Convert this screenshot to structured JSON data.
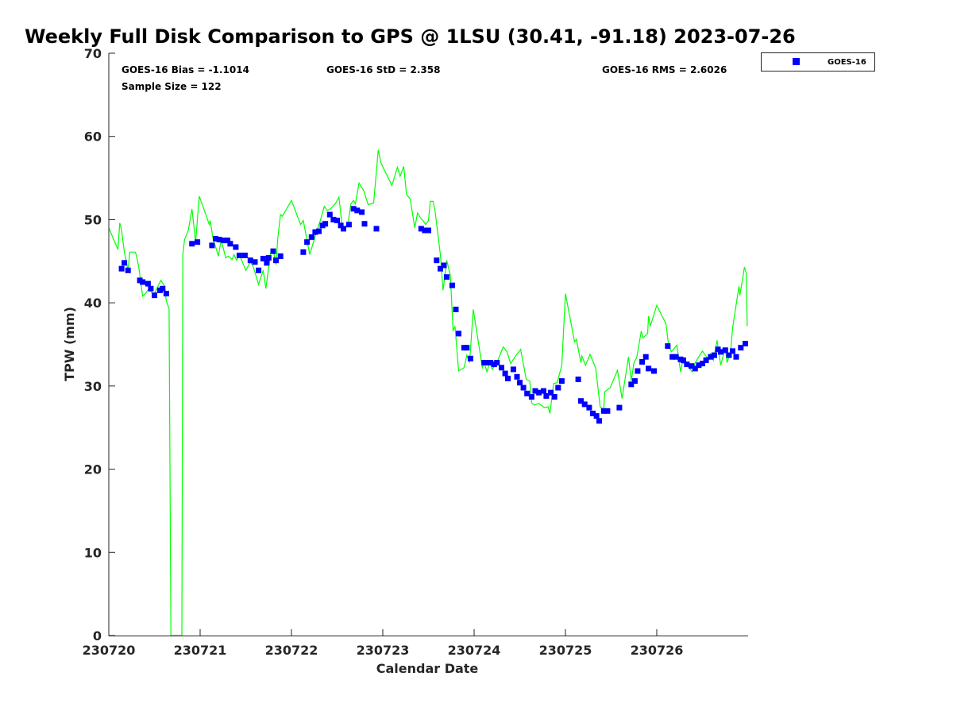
{
  "chart_data": {
    "type": "scatter",
    "title": "Weekly Full Disk Comparison to GPS @ 1LSU (30.41, -91.18) 2023-07-26",
    "xlabel": "Calendar Date",
    "ylabel": "TPW (mm)",
    "xlim": [
      0,
      7
    ],
    "ylim": [
      0,
      70
    ],
    "x_unit_note": "days since 230720",
    "xticks": [
      0,
      1,
      2,
      3,
      4,
      5,
      6
    ],
    "xtick_labels": [
      "230720",
      "230721",
      "230722",
      "230723",
      "230724",
      "230725",
      "230726"
    ],
    "yticks": [
      0,
      10,
      20,
      30,
      40,
      50,
      60,
      70
    ],
    "ytick_labels": [
      "0",
      "10",
      "20",
      "30",
      "40",
      "50",
      "60",
      "70"
    ],
    "grid": false,
    "legend": {
      "placement": "outside-top-right",
      "entries": [
        "GOES-16"
      ]
    },
    "stats": {
      "bias": "GOES-16 Bias = -1.1014",
      "std": "GOES-16 StD = 2.358",
      "rms": "GOES-16 RMS = 2.6026",
      "sample": "Sample Size = 122"
    },
    "colors": {
      "goes": "#0000ff",
      "gps": "#00ff00"
    },
    "series": [
      {
        "name": "GOES-16",
        "kind": "scatter",
        "points": [
          [
            0.14,
            44.1
          ],
          [
            0.17,
            44.8
          ],
          [
            0.21,
            43.9
          ],
          [
            0.34,
            42.7
          ],
          [
            0.37,
            42.5
          ],
          [
            0.43,
            42.3
          ],
          [
            0.46,
            41.7
          ],
          [
            0.5,
            40.9
          ],
          [
            0.56,
            41.5
          ],
          [
            0.59,
            41.7
          ],
          [
            0.63,
            41.1
          ],
          [
            0.91,
            47.1
          ],
          [
            0.97,
            47.3
          ],
          [
            1.13,
            46.9
          ],
          [
            1.17,
            47.7
          ],
          [
            1.21,
            47.6
          ],
          [
            1.26,
            47.5
          ],
          [
            1.3,
            47.5
          ],
          [
            1.33,
            47.1
          ],
          [
            1.39,
            46.7
          ],
          [
            1.43,
            45.7
          ],
          [
            1.49,
            45.7
          ],
          [
            1.55,
            45.1
          ],
          [
            1.6,
            44.9
          ],
          [
            1.64,
            43.9
          ],
          [
            1.69,
            45.3
          ],
          [
            1.73,
            44.8
          ],
          [
            1.75,
            45.4
          ],
          [
            1.8,
            46.2
          ],
          [
            1.83,
            45.1
          ],
          [
            1.88,
            45.6
          ],
          [
            2.13,
            46.1
          ],
          [
            2.17,
            47.3
          ],
          [
            2.22,
            47.9
          ],
          [
            2.26,
            48.5
          ],
          [
            2.3,
            48.6
          ],
          [
            2.34,
            49.3
          ],
          [
            2.37,
            49.5
          ],
          [
            2.42,
            50.6
          ],
          [
            2.46,
            50.0
          ],
          [
            2.5,
            49.9
          ],
          [
            2.54,
            49.3
          ],
          [
            2.57,
            48.9
          ],
          [
            2.63,
            49.4
          ],
          [
            2.68,
            51.3
          ],
          [
            2.72,
            51.1
          ],
          [
            2.77,
            50.9
          ],
          [
            2.8,
            49.5
          ],
          [
            2.93,
            48.9
          ],
          [
            3.42,
            48.9
          ],
          [
            3.46,
            48.7
          ],
          [
            3.5,
            48.7
          ],
          [
            3.59,
            45.1
          ],
          [
            3.63,
            44.1
          ],
          [
            3.67,
            44.5
          ],
          [
            3.7,
            43.1
          ],
          [
            3.76,
            42.1
          ],
          [
            3.8,
            39.2
          ],
          [
            3.83,
            36.3
          ],
          [
            3.89,
            34.6
          ],
          [
            3.92,
            34.6
          ],
          [
            3.96,
            33.3
          ],
          [
            4.11,
            32.8
          ],
          [
            4.15,
            32.8
          ],
          [
            4.18,
            32.8
          ],
          [
            4.22,
            32.6
          ],
          [
            4.25,
            32.8
          ],
          [
            4.3,
            32.2
          ],
          [
            4.34,
            31.5
          ],
          [
            4.37,
            30.9
          ],
          [
            4.43,
            32.0
          ],
          [
            4.47,
            31.1
          ],
          [
            4.5,
            30.4
          ],
          [
            4.54,
            29.8
          ],
          [
            4.58,
            29.1
          ],
          [
            4.63,
            28.7
          ],
          [
            4.67,
            29.4
          ],
          [
            4.71,
            29.2
          ],
          [
            4.76,
            29.4
          ],
          [
            4.79,
            28.8
          ],
          [
            4.84,
            29.2
          ],
          [
            4.88,
            28.7
          ],
          [
            4.92,
            29.8
          ],
          [
            4.96,
            30.6
          ],
          [
            5.14,
            30.8
          ],
          [
            5.17,
            28.2
          ],
          [
            5.21,
            27.8
          ],
          [
            5.26,
            27.4
          ],
          [
            5.3,
            26.7
          ],
          [
            5.34,
            26.4
          ],
          [
            5.37,
            25.8
          ],
          [
            5.42,
            27.0
          ],
          [
            5.46,
            27.0
          ],
          [
            5.59,
            27.4
          ],
          [
            5.72,
            30.2
          ],
          [
            5.76,
            30.6
          ],
          [
            5.79,
            31.8
          ],
          [
            5.84,
            32.9
          ],
          [
            5.88,
            33.5
          ],
          [
            5.91,
            32.1
          ],
          [
            5.97,
            31.8
          ],
          [
            6.12,
            34.8
          ],
          [
            6.17,
            33.5
          ],
          [
            6.21,
            33.5
          ],
          [
            6.26,
            33.2
          ],
          [
            6.29,
            33.1
          ],
          [
            6.33,
            32.6
          ],
          [
            6.38,
            32.4
          ],
          [
            6.42,
            32.1
          ],
          [
            6.46,
            32.5
          ],
          [
            6.5,
            32.7
          ],
          [
            6.54,
            33.1
          ],
          [
            6.59,
            33.5
          ],
          [
            6.63,
            33.7
          ],
          [
            6.67,
            34.4
          ],
          [
            6.7,
            34.1
          ],
          [
            6.75,
            34.3
          ],
          [
            6.79,
            33.7
          ],
          [
            6.83,
            34.2
          ],
          [
            6.87,
            33.5
          ],
          [
            6.92,
            34.6
          ],
          [
            6.97,
            35.1
          ]
        ]
      },
      {
        "name": "GPS",
        "kind": "line",
        "points": [
          [
            0.0,
            49.0
          ],
          [
            0.1,
            46.4
          ],
          [
            0.12,
            49.6
          ],
          [
            0.14,
            48.7
          ],
          [
            0.17,
            46.1
          ],
          [
            0.21,
            43.9
          ],
          [
            0.23,
            46.1
          ],
          [
            0.29,
            46.1
          ],
          [
            0.3,
            45.8
          ],
          [
            0.33,
            44.2
          ],
          [
            0.37,
            40.8
          ],
          [
            0.4,
            41.1
          ],
          [
            0.44,
            41.7
          ],
          [
            0.49,
            40.9
          ],
          [
            0.57,
            42.7
          ],
          [
            0.61,
            42.0
          ],
          [
            0.63,
            40.2
          ],
          [
            0.66,
            39.3
          ],
          [
            0.68,
            0
          ],
          [
            0.8,
            0
          ],
          [
            0.81,
            45.8
          ],
          [
            0.83,
            47.6
          ],
          [
            0.87,
            48.7
          ],
          [
            0.91,
            51.3
          ],
          [
            0.95,
            47.3
          ],
          [
            0.99,
            52.8
          ],
          [
            1.04,
            51.3
          ],
          [
            1.1,
            49.4
          ],
          [
            1.11,
            49.9
          ],
          [
            1.14,
            47.8
          ],
          [
            1.2,
            45.6
          ],
          [
            1.23,
            47.6
          ],
          [
            1.28,
            45.4
          ],
          [
            1.31,
            45.6
          ],
          [
            1.35,
            45.2
          ],
          [
            1.37,
            45.8
          ],
          [
            1.4,
            45.1
          ],
          [
            1.43,
            45.8
          ],
          [
            1.5,
            43.9
          ],
          [
            1.55,
            44.9
          ],
          [
            1.58,
            44.4
          ],
          [
            1.64,
            42.2
          ],
          [
            1.69,
            43.9
          ],
          [
            1.72,
            41.7
          ],
          [
            1.77,
            45.9
          ],
          [
            1.8,
            46.4
          ],
          [
            1.83,
            44.6
          ],
          [
            1.85,
            47.8
          ],
          [
            1.88,
            50.6
          ],
          [
            1.9,
            50.4
          ],
          [
            2.0,
            52.3
          ],
          [
            2.1,
            49.4
          ],
          [
            2.13,
            49.9
          ],
          [
            2.17,
            47.5
          ],
          [
            2.2,
            45.8
          ],
          [
            2.26,
            48.0
          ],
          [
            2.31,
            49.7
          ],
          [
            2.36,
            51.6
          ],
          [
            2.39,
            51.1
          ],
          [
            2.43,
            51.3
          ],
          [
            2.48,
            51.9
          ],
          [
            2.52,
            52.7
          ],
          [
            2.55,
            49.7
          ],
          [
            2.57,
            48.9
          ],
          [
            2.62,
            49.5
          ],
          [
            2.65,
            51.9
          ],
          [
            2.68,
            52.3
          ],
          [
            2.7,
            51.9
          ],
          [
            2.74,
            54.4
          ],
          [
            2.79,
            53.5
          ],
          [
            2.84,
            51.8
          ],
          [
            2.9,
            52.0
          ],
          [
            2.95,
            58.4
          ],
          [
            2.98,
            56.8
          ],
          [
            3.1,
            54.1
          ],
          [
            3.16,
            56.3
          ],
          [
            3.19,
            55.2
          ],
          [
            3.23,
            56.4
          ],
          [
            3.26,
            53.0
          ],
          [
            3.3,
            52.5
          ],
          [
            3.35,
            49.0
          ],
          [
            3.38,
            50.8
          ],
          [
            3.42,
            50.1
          ],
          [
            3.44,
            49.9
          ],
          [
            3.47,
            49.4
          ],
          [
            3.5,
            49.9
          ],
          [
            3.52,
            52.2
          ],
          [
            3.55,
            52.2
          ],
          [
            3.57,
            51.3
          ],
          [
            3.63,
            45.8
          ],
          [
            3.66,
            41.5
          ],
          [
            3.7,
            45.1
          ],
          [
            3.74,
            43.3
          ],
          [
            3.77,
            36.6
          ],
          [
            3.79,
            37.2
          ],
          [
            3.83,
            31.8
          ],
          [
            3.89,
            32.2
          ],
          [
            3.92,
            33.7
          ],
          [
            3.95,
            32.8
          ],
          [
            3.99,
            39.2
          ],
          [
            4.09,
            32.2
          ],
          [
            4.11,
            32.8
          ],
          [
            4.14,
            31.7
          ],
          [
            4.17,
            32.8
          ],
          [
            4.2,
            32.0
          ],
          [
            4.26,
            33.1
          ],
          [
            4.32,
            34.7
          ],
          [
            4.36,
            34.1
          ],
          [
            4.4,
            32.7
          ],
          [
            4.46,
            33.7
          ],
          [
            4.51,
            34.4
          ],
          [
            4.57,
            30.8
          ],
          [
            4.61,
            30.6
          ],
          [
            4.63,
            28.0
          ],
          [
            4.66,
            27.7
          ],
          [
            4.71,
            27.9
          ],
          [
            4.77,
            27.4
          ],
          [
            4.81,
            27.5
          ],
          [
            4.83,
            26.7
          ],
          [
            4.87,
            30.3
          ],
          [
            4.91,
            30.4
          ],
          [
            4.96,
            32.5
          ],
          [
            5.0,
            41.1
          ],
          [
            5.1,
            35.3
          ],
          [
            5.12,
            35.6
          ],
          [
            5.17,
            32.8
          ],
          [
            5.18,
            33.6
          ],
          [
            5.22,
            32.5
          ],
          [
            5.27,
            33.8
          ],
          [
            5.33,
            32.2
          ],
          [
            5.38,
            27.5
          ],
          [
            5.42,
            27.2
          ],
          [
            5.43,
            29.3
          ],
          [
            5.49,
            29.8
          ],
          [
            5.57,
            31.9
          ],
          [
            5.62,
            28.5
          ],
          [
            5.69,
            33.5
          ],
          [
            5.72,
            30.6
          ],
          [
            5.75,
            32.8
          ],
          [
            5.78,
            33.4
          ],
          [
            5.83,
            36.6
          ],
          [
            5.85,
            35.8
          ],
          [
            5.9,
            36.3
          ],
          [
            5.91,
            38.4
          ],
          [
            5.93,
            37.2
          ],
          [
            6.0,
            39.7
          ],
          [
            6.1,
            37.5
          ],
          [
            6.13,
            34.9
          ],
          [
            6.16,
            34.1
          ],
          [
            6.22,
            34.9
          ],
          [
            6.26,
            31.7
          ],
          [
            6.28,
            32.8
          ],
          [
            6.33,
            32.5
          ],
          [
            6.39,
            31.7
          ],
          [
            6.42,
            32.8
          ],
          [
            6.5,
            34.2
          ],
          [
            6.55,
            33.4
          ],
          [
            6.59,
            33.9
          ],
          [
            6.62,
            33.1
          ],
          [
            6.66,
            35.5
          ],
          [
            6.7,
            32.5
          ],
          [
            6.75,
            34.6
          ],
          [
            6.77,
            32.8
          ],
          [
            6.81,
            34.2
          ],
          [
            6.83,
            37.0
          ],
          [
            6.9,
            42.0
          ],
          [
            6.91,
            40.9
          ],
          [
            6.96,
            44.3
          ],
          [
            6.98,
            43.5
          ],
          [
            6.99,
            37.2
          ]
        ]
      }
    ]
  }
}
